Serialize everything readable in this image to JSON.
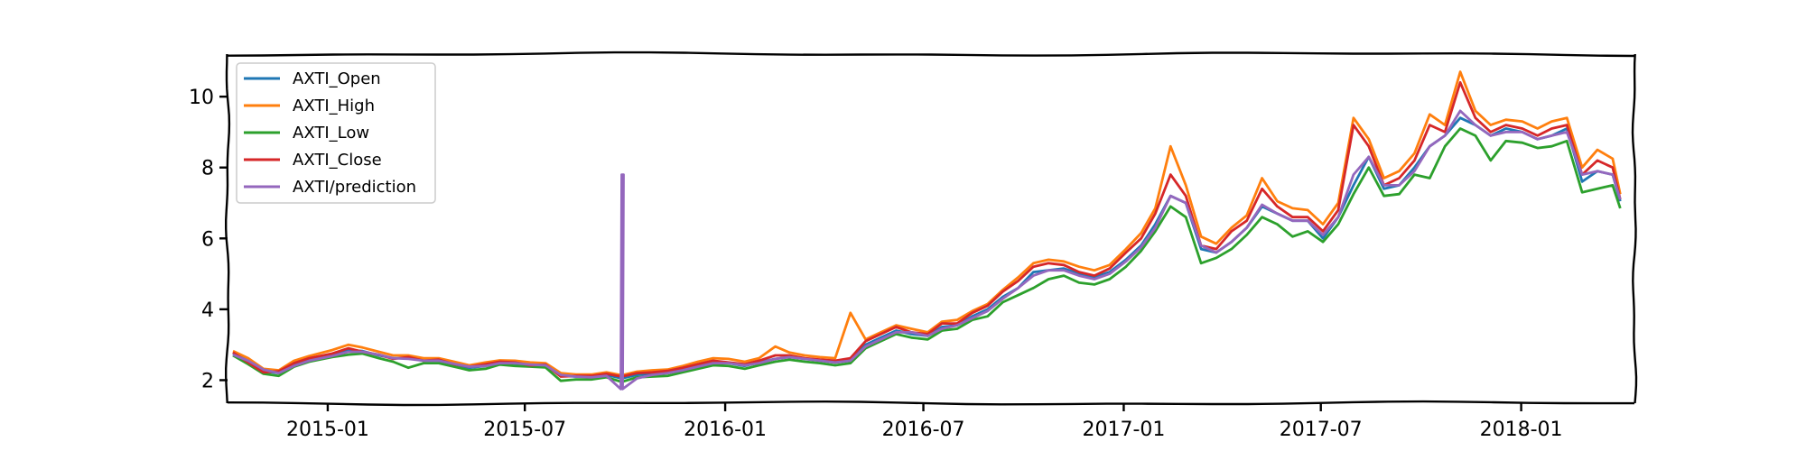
{
  "chart_data": {
    "type": "line",
    "title": "",
    "xlabel": "",
    "ylabel": "",
    "xlim": [
      "2014-10-01",
      "2018-04-15"
    ],
    "ylim": [
      1.35,
      11.2
    ],
    "x_ticks": [
      "2015-01",
      "2015-07",
      "2016-01",
      "2016-07",
      "2017-01",
      "2017-07",
      "2018-01"
    ],
    "y_ticks": [
      2,
      4,
      6,
      8,
      10
    ],
    "grid": false,
    "legend_position": "upper-left",
    "x_dates": [
      "2014-10-06",
      "2014-10-20",
      "2014-11-03",
      "2014-11-17",
      "2014-12-01",
      "2014-12-15",
      "2015-01-05",
      "2015-01-20",
      "2015-02-02",
      "2015-02-17",
      "2015-03-02",
      "2015-03-16",
      "2015-03-30",
      "2015-04-13",
      "2015-04-27",
      "2015-05-11",
      "2015-05-26",
      "2015-06-08",
      "2015-06-22",
      "2015-07-06",
      "2015-07-20",
      "2015-08-03",
      "2015-08-17",
      "2015-08-31",
      "2015-09-14",
      "2015-09-28",
      "2015-10-12",
      "2015-10-26",
      "2015-11-09",
      "2015-11-23",
      "2015-12-07",
      "2015-12-21",
      "2016-01-04",
      "2016-01-19",
      "2016-02-01",
      "2016-02-16",
      "2016-02-29",
      "2016-03-14",
      "2016-03-28",
      "2016-04-11",
      "2016-04-25",
      "2016-05-09",
      "2016-05-23",
      "2016-06-06",
      "2016-06-20",
      "2016-07-05",
      "2016-07-18",
      "2016-08-01",
      "2016-08-15",
      "2016-08-29",
      "2016-09-12",
      "2016-09-26",
      "2016-10-10",
      "2016-10-24",
      "2016-11-07",
      "2016-11-21",
      "2016-12-05",
      "2016-12-19",
      "2017-01-03",
      "2017-01-17",
      "2017-01-30",
      "2017-02-13",
      "2017-02-27",
      "2017-03-13",
      "2017-03-27",
      "2017-04-10",
      "2017-04-24",
      "2017-05-08",
      "2017-05-22",
      "2017-06-05",
      "2017-06-19",
      "2017-07-03",
      "2017-07-17",
      "2017-07-31",
      "2017-08-14",
      "2017-08-28",
      "2017-09-11",
      "2017-09-25",
      "2017-10-09",
      "2017-10-23",
      "2017-11-06",
      "2017-11-20",
      "2017-12-04",
      "2017-12-18",
      "2018-01-02",
      "2018-01-16",
      "2018-01-29",
      "2018-02-12",
      "2018-02-26",
      "2018-03-12",
      "2018-03-26",
      "2018-04-02"
    ],
    "series": [
      {
        "name": "AXTI_Open",
        "color": "#1f77b4",
        "values": [
          2.76,
          2.55,
          2.25,
          2.2,
          2.45,
          2.6,
          2.72,
          2.85,
          2.82,
          2.7,
          2.62,
          2.62,
          2.55,
          2.55,
          2.45,
          2.35,
          2.4,
          2.5,
          2.47,
          2.44,
          2.42,
          2.12,
          2.1,
          2.1,
          2.15,
          2.05,
          2.15,
          2.18,
          2.2,
          2.3,
          2.4,
          2.5,
          2.48,
          2.4,
          2.5,
          2.6,
          2.65,
          2.6,
          2.55,
          2.5,
          2.55,
          3.0,
          3.2,
          3.4,
          3.3,
          3.25,
          3.5,
          3.55,
          3.8,
          4.0,
          4.35,
          4.6,
          5.05,
          5.1,
          5.15,
          5.0,
          4.9,
          5.05,
          5.4,
          5.8,
          6.4,
          7.2,
          7.0,
          5.7,
          5.6,
          5.9,
          6.3,
          6.9,
          6.7,
          6.5,
          6.5,
          6.0,
          6.6,
          7.5,
          8.3,
          7.4,
          7.5,
          8.0,
          8.6,
          8.9,
          9.4,
          9.2,
          8.9,
          9.1,
          9.0,
          8.8,
          8.9,
          9.1,
          7.6,
          7.9,
          7.8,
          7.05
        ]
      },
      {
        "name": "AXTI_High",
        "color": "#ff7f0e",
        "values": [
          2.82,
          2.62,
          2.32,
          2.28,
          2.55,
          2.68,
          2.85,
          3.0,
          2.92,
          2.8,
          2.7,
          2.7,
          2.62,
          2.62,
          2.52,
          2.42,
          2.5,
          2.56,
          2.55,
          2.5,
          2.48,
          2.2,
          2.16,
          2.16,
          2.22,
          2.14,
          2.24,
          2.28,
          2.3,
          2.4,
          2.52,
          2.62,
          2.6,
          2.52,
          2.62,
          2.95,
          2.78,
          2.7,
          2.65,
          2.62,
          3.9,
          3.15,
          3.35,
          3.55,
          3.45,
          3.35,
          3.65,
          3.7,
          3.95,
          4.15,
          4.55,
          4.9,
          5.3,
          5.4,
          5.35,
          5.2,
          5.1,
          5.25,
          5.7,
          6.15,
          6.85,
          8.6,
          7.5,
          6.05,
          5.85,
          6.3,
          6.65,
          7.7,
          7.05,
          6.85,
          6.8,
          6.4,
          7.0,
          9.4,
          8.8,
          7.7,
          7.9,
          8.4,
          9.5,
          9.2,
          10.7,
          9.6,
          9.2,
          9.35,
          9.3,
          9.1,
          9.3,
          9.4,
          8.0,
          8.5,
          8.25,
          7.25
        ]
      },
      {
        "name": "AXTI_Low",
        "color": "#2ca02c",
        "values": [
          2.7,
          2.45,
          2.18,
          2.12,
          2.38,
          2.52,
          2.65,
          2.72,
          2.75,
          2.62,
          2.52,
          2.35,
          2.48,
          2.48,
          2.38,
          2.28,
          2.32,
          2.44,
          2.4,
          2.38,
          2.36,
          1.98,
          2.02,
          2.02,
          2.08,
          1.95,
          2.08,
          2.1,
          2.12,
          2.22,
          2.32,
          2.42,
          2.4,
          2.32,
          2.42,
          2.52,
          2.58,
          2.52,
          2.48,
          2.42,
          2.48,
          2.9,
          3.1,
          3.3,
          3.2,
          3.15,
          3.4,
          3.45,
          3.7,
          3.8,
          4.2,
          4.4,
          4.6,
          4.85,
          4.95,
          4.75,
          4.7,
          4.85,
          5.2,
          5.65,
          6.2,
          6.9,
          6.6,
          5.3,
          5.45,
          5.7,
          6.1,
          6.6,
          6.4,
          6.05,
          6.2,
          5.9,
          6.4,
          7.25,
          8.0,
          7.2,
          7.25,
          7.8,
          7.7,
          8.6,
          9.1,
          8.9,
          8.2,
          8.75,
          8.7,
          8.55,
          8.6,
          8.75,
          7.3,
          7.4,
          7.5,
          6.85
        ]
      },
      {
        "name": "AXTI_Close",
        "color": "#d62728",
        "values": [
          2.78,
          2.5,
          2.22,
          2.25,
          2.48,
          2.62,
          2.75,
          2.9,
          2.8,
          2.72,
          2.6,
          2.65,
          2.55,
          2.58,
          2.45,
          2.38,
          2.45,
          2.52,
          2.5,
          2.42,
          2.44,
          2.1,
          2.12,
          2.12,
          2.18,
          2.1,
          2.2,
          2.22,
          2.26,
          2.35,
          2.45,
          2.55,
          2.5,
          2.45,
          2.55,
          2.7,
          2.7,
          2.62,
          2.58,
          2.55,
          2.62,
          3.1,
          3.3,
          3.5,
          3.35,
          3.3,
          3.6,
          3.6,
          3.9,
          4.1,
          4.5,
          4.8,
          5.2,
          5.3,
          5.25,
          5.05,
          4.95,
          5.15,
          5.6,
          6.0,
          6.7,
          7.8,
          7.2,
          5.8,
          5.7,
          6.2,
          6.5,
          7.4,
          6.9,
          6.6,
          6.6,
          6.2,
          6.8,
          9.2,
          8.6,
          7.5,
          7.7,
          8.2,
          9.2,
          9.0,
          10.4,
          9.4,
          9.0,
          9.2,
          9.1,
          8.9,
          9.1,
          9.2,
          7.8,
          8.2,
          8.0,
          7.1
        ]
      },
      {
        "name": "AXTI/prediction",
        "color": "#9467bd",
        "values": [
          2.72,
          2.55,
          2.3,
          2.2,
          2.4,
          2.55,
          2.68,
          2.8,
          2.8,
          2.72,
          2.62,
          2.6,
          2.55,
          2.55,
          2.46,
          2.38,
          2.4,
          2.48,
          2.48,
          2.44,
          2.42,
          2.15,
          2.1,
          2.08,
          2.12,
          1.85,
          2.05,
          2.15,
          2.2,
          2.28,
          2.38,
          2.48,
          2.48,
          2.42,
          2.48,
          2.6,
          2.65,
          2.6,
          2.55,
          2.5,
          2.55,
          2.95,
          3.15,
          3.35,
          3.35,
          3.25,
          3.45,
          3.55,
          3.75,
          3.95,
          4.3,
          4.6,
          4.95,
          5.1,
          5.1,
          4.95,
          4.85,
          5.0,
          5.35,
          5.75,
          6.3,
          7.2,
          7.0,
          5.8,
          5.6,
          5.9,
          6.3,
          6.95,
          6.7,
          6.5,
          6.5,
          6.1,
          6.6,
          7.8,
          8.3,
          7.5,
          7.5,
          7.9,
          8.6,
          8.9,
          9.6,
          9.2,
          8.9,
          9.0,
          9.0,
          8.8,
          8.9,
          9.0,
          7.8,
          7.9,
          7.8,
          7.1
        ]
      }
    ],
    "spike": {
      "series": "AXTI/prediction",
      "date": "2015-09-28",
      "min": 1.75,
      "max": 7.8
    }
  }
}
